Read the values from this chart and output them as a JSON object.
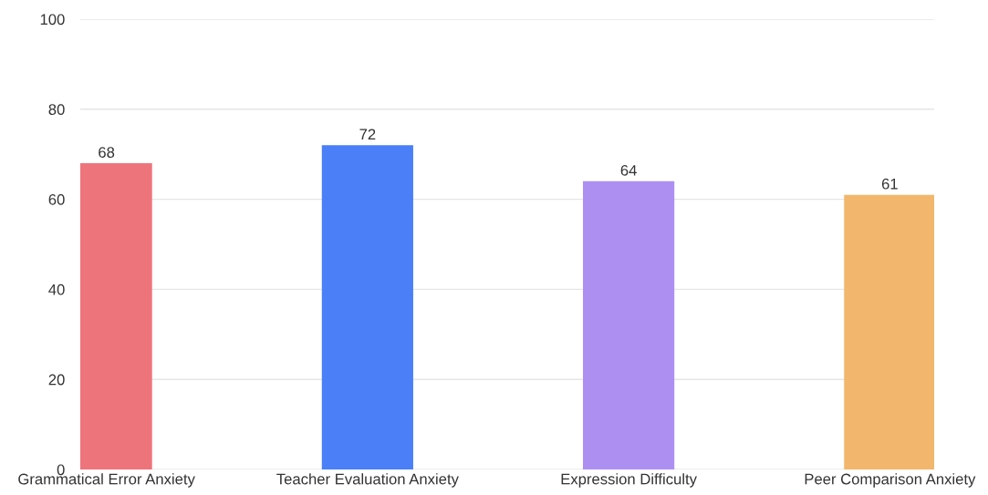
{
  "chart_data": {
    "type": "bar",
    "categories": [
      "Grammatical Error Anxiety",
      "Teacher Evaluation Anxiety",
      "Expression Difficulty",
      "Peer Comparison Anxiety"
    ],
    "values": [
      68,
      72,
      64,
      61
    ],
    "colors": [
      "#ee747c",
      "#4a7ff7",
      "#ad8ff2",
      "#f2b76c"
    ],
    "ylim": [
      0,
      100
    ],
    "yticks": [
      0,
      20,
      40,
      60,
      80,
      100
    ],
    "grid": "y",
    "data_labels": true
  }
}
